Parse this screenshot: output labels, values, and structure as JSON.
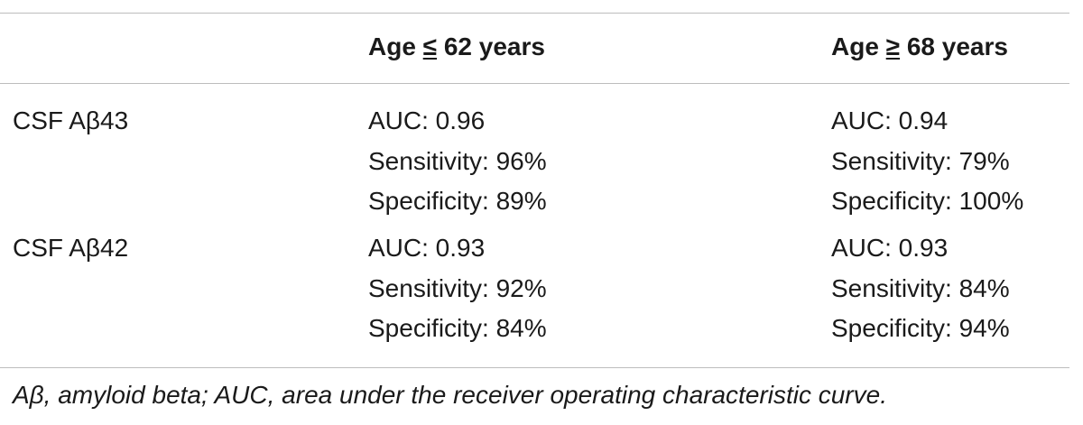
{
  "table": {
    "headers": {
      "col1_prefix": "Age ",
      "col1_symbol": "≤",
      "col1_suffix": " 62 years",
      "col2_prefix": "Age ",
      "col2_symbol": "≥",
      "col2_suffix": " 68 years"
    },
    "rows": [
      {
        "label": "CSF Aβ43",
        "col1": [
          "AUC: 0.96",
          "Sensitivity: 96%",
          "Specificity: 89%"
        ],
        "col2": [
          "AUC: 0.94",
          "Sensitivity: 79%",
          "Specificity: 100%"
        ]
      },
      {
        "label": "CSF Aβ42",
        "col1": [
          "AUC: 0.93",
          "Sensitivity: 92%",
          "Specificity: 84%"
        ],
        "col2": [
          "AUC: 0.93",
          "Sensitivity: 84%",
          "Specificity: 94%"
        ]
      }
    ]
  },
  "footnote": "Aβ, amyloid beta; AUC, area under the receiver operating characteristic curve."
}
